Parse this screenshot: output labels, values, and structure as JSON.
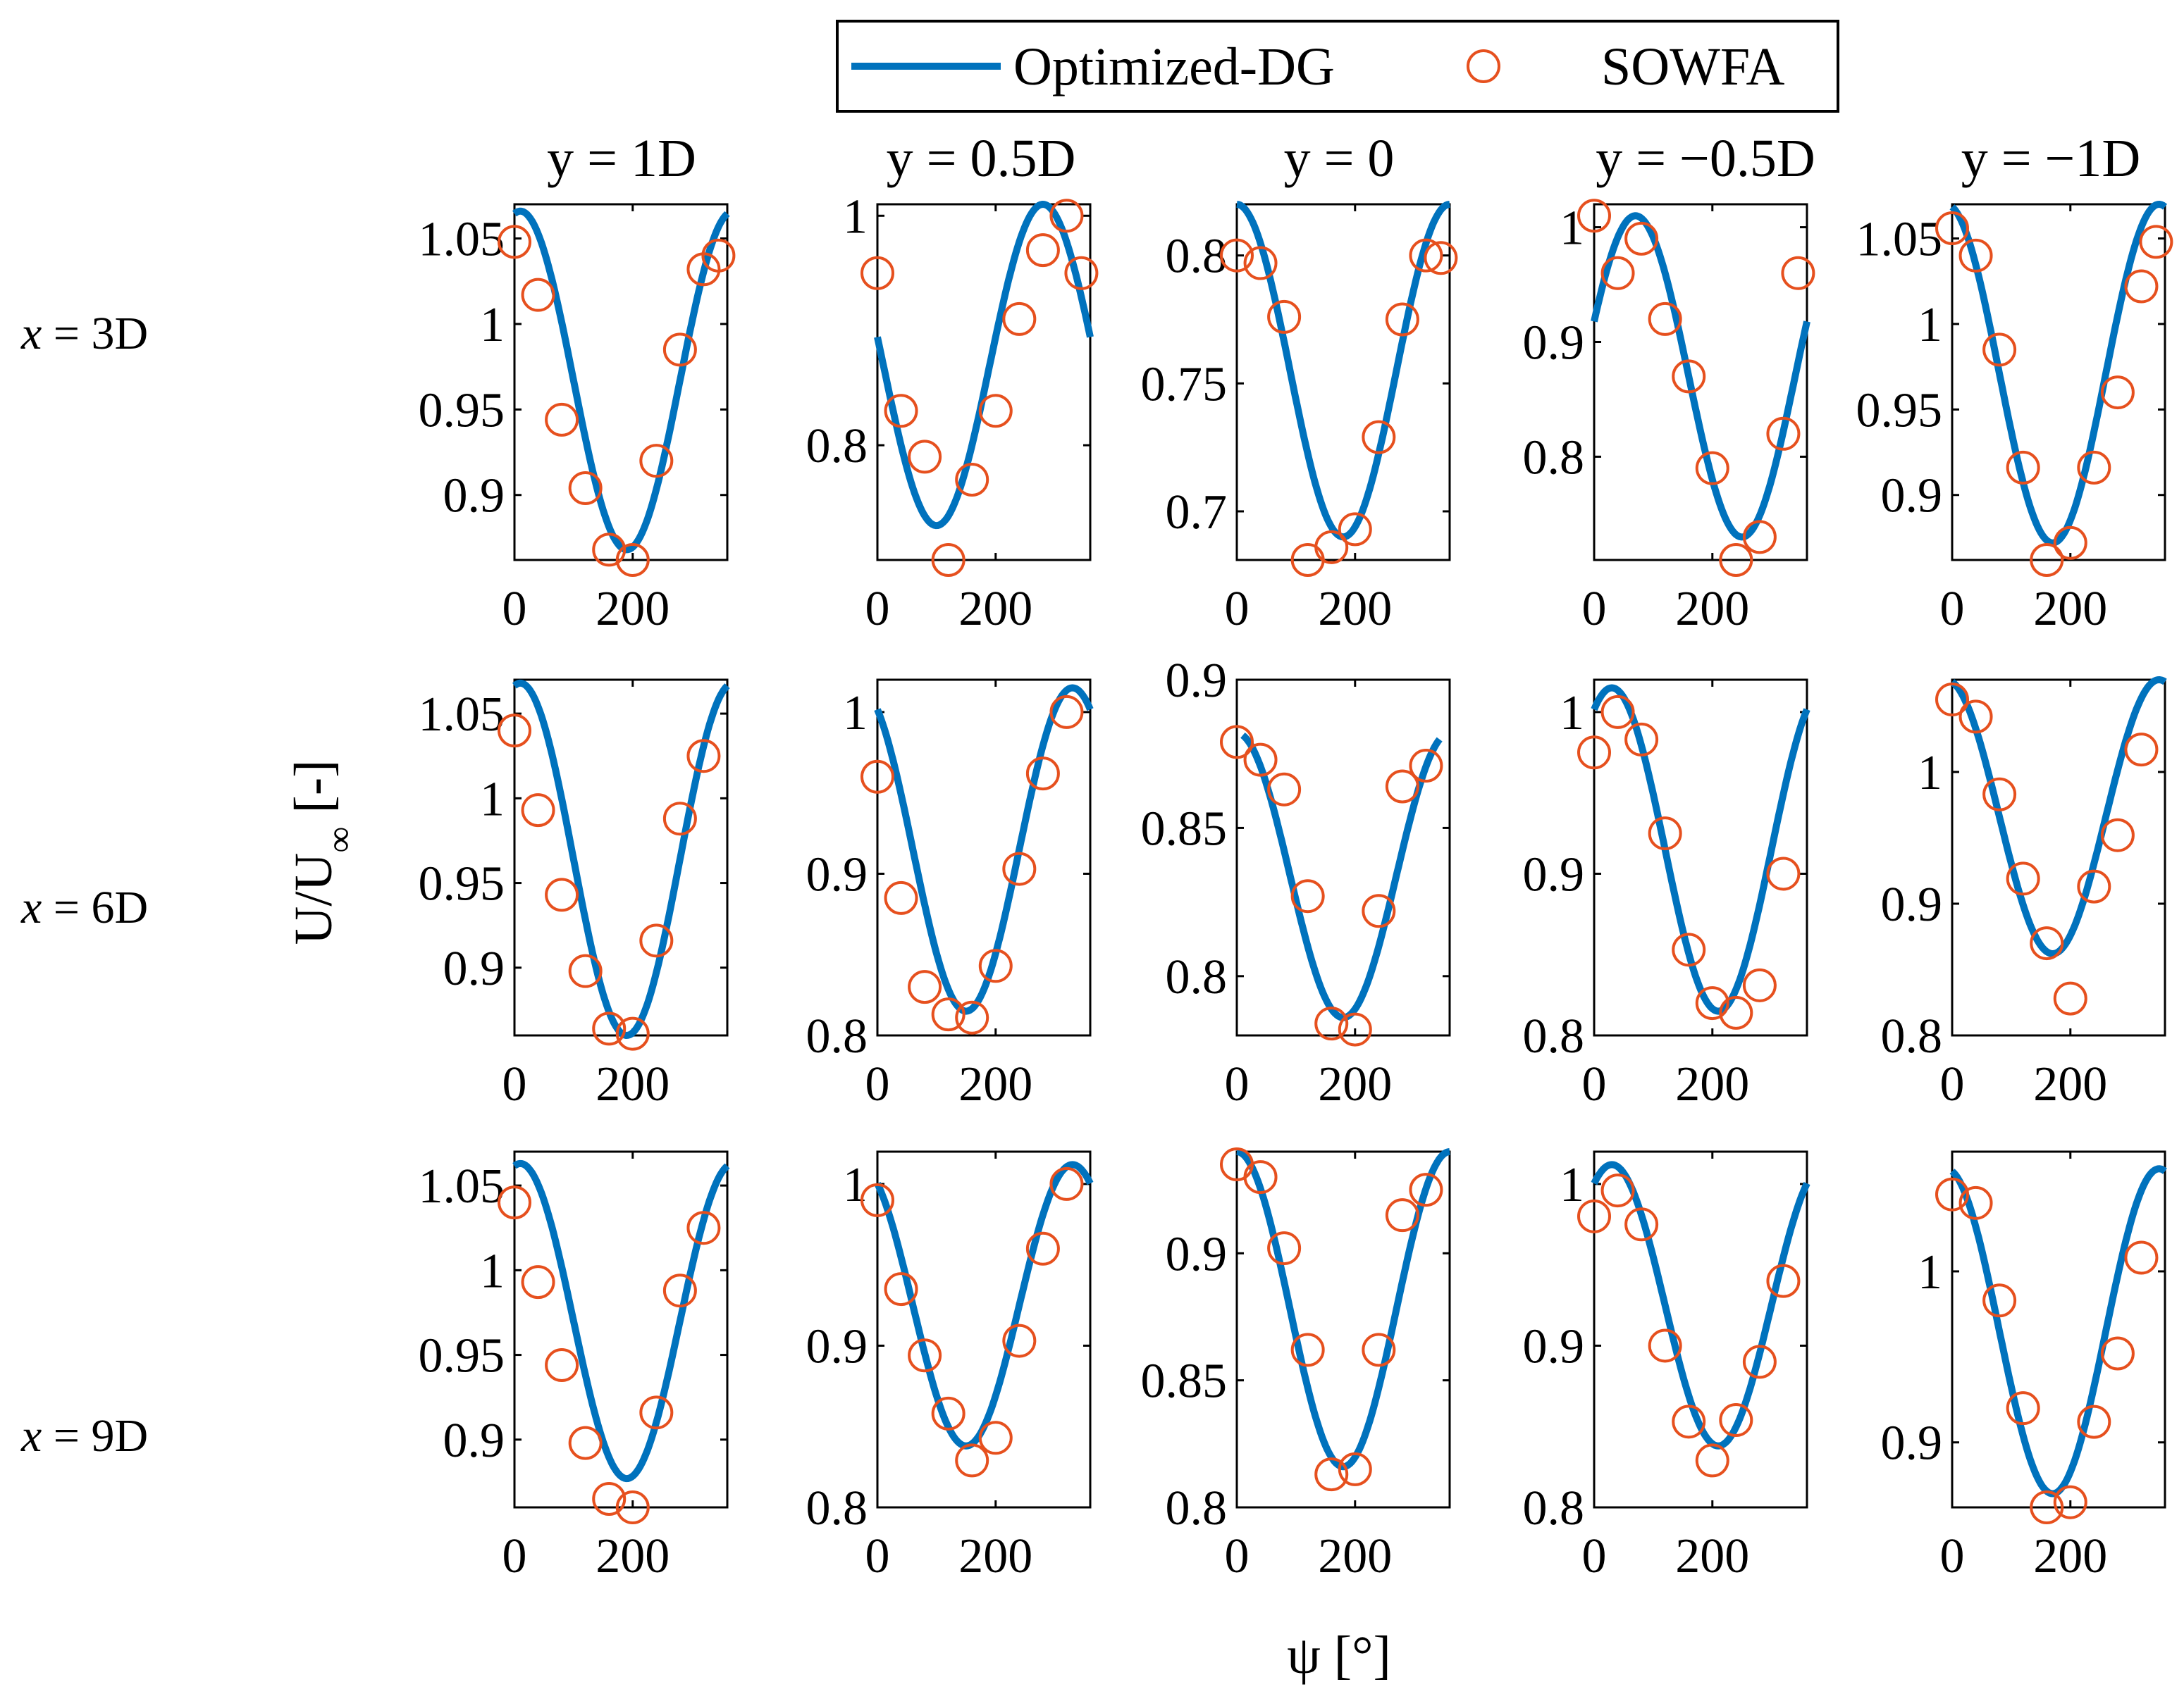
{
  "legend": {
    "line_label": "Optimized-DG",
    "marker_label": "SOWFA"
  },
  "colors": {
    "model": "#0072BD",
    "sowfa": "#E6501E",
    "axes": "#000000"
  },
  "axis_labels": {
    "x": "ψ [°]",
    "y_main": "U/U",
    "y_sub": "∞",
    "y_tail": " [-]"
  },
  "columns": [
    "y = 1D",
    "y = 0.5D",
    "y = 0",
    "y = −0.5D",
    "y = −1D"
  ],
  "rows": [
    {
      "pre": "x",
      "post": " = 3D"
    },
    {
      "pre": "x",
      "post": " = 6D"
    },
    {
      "pre": "x",
      "post": " = 9D"
    }
  ],
  "chart_data": [
    {
      "type": "line",
      "title": "y = 1D / x = 3D",
      "xlim": [
        0,
        360
      ],
      "ylim": [
        0.862,
        1.07
      ],
      "xticks": [
        "0",
        "200"
      ],
      "yticks": [
        [
          "0.9",
          0.9
        ],
        [
          "0.95",
          0.95
        ],
        [
          "1",
          1
        ],
        [
          "1.05",
          1.05
        ]
      ],
      "series": [
        {
          "name": "Optimized-DG",
          "curve": {
            "mean": 0.967,
            "amp": 0.099,
            "phase": 10,
            "x0": 0,
            "x1": 360
          }
        },
        {
          "name": "SOWFA",
          "x": [
            0,
            40,
            80,
            120,
            160,
            200,
            240,
            280,
            320,
            345
          ],
          "y": [
            1.048,
            1.017,
            0.944,
            0.904,
            0.868,
            0.862,
            0.92,
            0.985,
            1.032,
            1.04
          ]
        }
      ]
    },
    {
      "type": "line",
      "title": "y = 0.5D / x = 3D",
      "xlim": [
        0,
        360
      ],
      "ylim": [
        0.7,
        1.01
      ],
      "xticks": [
        "0",
        "200"
      ],
      "yticks": [
        [
          "0.8",
          0.8
        ],
        [
          "1",
          1
        ]
      ],
      "series": [
        {
          "name": "Optimized-DG",
          "curve": {
            "mean": 0.87,
            "amp": 0.14,
            "phase": -80,
            "x0": 0,
            "x1": 360
          }
        },
        {
          "name": "SOWFA",
          "x": [
            0,
            40,
            80,
            120,
            160,
            200,
            240,
            280,
            320,
            345
          ],
          "y": [
            0.95,
            0.83,
            0.79,
            0.7,
            0.77,
            0.83,
            0.91,
            0.97,
            1.0,
            0.95
          ]
        }
      ]
    },
    {
      "type": "line",
      "title": "y = 0 / x = 3D",
      "xlim": [
        0,
        360
      ],
      "ylim": [
        0.681,
        0.82
      ],
      "xticks": [
        "0",
        "200"
      ],
      "yticks": [
        [
          "0.7",
          0.7
        ],
        [
          "0.75",
          0.75
        ],
        [
          "0.8",
          0.8
        ]
      ],
      "series": [
        {
          "name": "Optimized-DG",
          "curve": {
            "mean": 0.755,
            "amp": 0.065,
            "phase": 0,
            "x0": 0,
            "x1": 360
          }
        },
        {
          "name": "SOWFA",
          "x": [
            0,
            40,
            80,
            120,
            160,
            200,
            240,
            280,
            320,
            345
          ],
          "y": [
            0.8,
            0.797,
            0.776,
            0.681,
            0.686,
            0.693,
            0.729,
            0.775,
            0.8,
            0.799
          ]
        }
      ]
    },
    {
      "type": "line",
      "title": "y = −0.5D / x = 3D",
      "xlim": [
        0,
        360
      ],
      "ylim": [
        0.71,
        1.02
      ],
      "xticks": [
        "0",
        "200"
      ],
      "yticks": [
        [
          "0.8",
          0.8
        ],
        [
          "0.9",
          0.9
        ],
        [
          "1",
          1
        ]
      ],
      "series": [
        {
          "name": "Optimized-DG",
          "curve": {
            "mean": 0.87,
            "amp": 0.14,
            "phase": 70,
            "x0": 0,
            "x1": 360
          }
        },
        {
          "name": "SOWFA",
          "x": [
            0,
            40,
            80,
            120,
            160,
            200,
            240,
            280,
            320,
            345
          ],
          "y": [
            1.01,
            0.96,
            0.99,
            0.92,
            0.87,
            0.79,
            0.71,
            0.73,
            0.82,
            0.96
          ]
        }
      ]
    },
    {
      "type": "line",
      "title": "y = −1D / x = 3D",
      "xlim": [
        0,
        360
      ],
      "ylim": [
        0.862,
        1.07
      ],
      "xticks": [
        "0",
        "200"
      ],
      "yticks": [
        [
          "0.9",
          0.9
        ],
        [
          "0.95",
          0.95
        ],
        [
          "1",
          1
        ],
        [
          "1.05",
          1.05
        ]
      ],
      "series": [
        {
          "name": "Optimized-DG",
          "curve": {
            "mean": 0.971,
            "amp": 0.099,
            "phase": -10,
            "x0": 0,
            "x1": 360
          }
        },
        {
          "name": "SOWFA",
          "x": [
            0,
            40,
            80,
            120,
            160,
            200,
            240,
            280,
            320,
            345
          ],
          "y": [
            1.056,
            1.04,
            0.985,
            0.916,
            0.862,
            0.872,
            0.916,
            0.96,
            1.022,
            1.048
          ]
        }
      ]
    },
    {
      "type": "line",
      "title": "y = 1D / x = 6D",
      "xlim": [
        0,
        360
      ],
      "ylim": [
        0.86,
        1.07
      ],
      "xticks": [
        "0",
        "200"
      ],
      "yticks": [
        [
          "0.9",
          0.9
        ],
        [
          "0.95",
          0.95
        ],
        [
          "1",
          1
        ],
        [
          "1.05",
          1.05
        ]
      ],
      "series": [
        {
          "name": "Optimized-DG",
          "curve": {
            "mean": 0.964,
            "amp": 0.104,
            "phase": 10,
            "x0": 0,
            "x1": 360
          }
        },
        {
          "name": "SOWFA",
          "x": [
            0,
            40,
            80,
            120,
            160,
            200,
            240,
            280,
            320
          ],
          "y": [
            1.04,
            0.993,
            0.943,
            0.898,
            0.864,
            0.861,
            0.916,
            0.988,
            1.025
          ]
        }
      ]
    },
    {
      "type": "line",
      "title": "y = 0.5D / x = 6D",
      "xlim": [
        0,
        360
      ],
      "ylim": [
        0.8,
        1.02
      ],
      "xticks": [
        "0",
        "200"
      ],
      "yticks": [
        [
          "0.8",
          0.8
        ],
        [
          "0.9",
          0.9
        ],
        [
          "1",
          1
        ]
      ],
      "series": [
        {
          "name": "Optimized-DG",
          "curve": {
            "mean": 0.915,
            "amp": 0.1,
            "phase": -30,
            "x0": 0,
            "x1": 360
          }
        },
        {
          "name": "SOWFA",
          "x": [
            0,
            40,
            80,
            120,
            160,
            200,
            240,
            280,
            320
          ],
          "y": [
            0.96,
            0.885,
            0.83,
            0.813,
            0.811,
            0.843,
            0.903,
            0.962,
            1.0
          ]
        }
      ]
    },
    {
      "type": "line",
      "title": "y = 0 / x = 6D",
      "xlim": [
        0,
        360
      ],
      "ylim": [
        0.78,
        0.9
      ],
      "xticks": [
        "0",
        "200"
      ],
      "yticks": [
        [
          "0.8",
          0.8
        ],
        [
          "0.85",
          0.85
        ],
        [
          "0.9",
          0.9
        ]
      ],
      "series": [
        {
          "name": "Optimized-DG",
          "curve": {
            "mean": 0.834,
            "amp": 0.048,
            "phase": 0,
            "x0": 10,
            "x1": 345
          }
        },
        {
          "name": "SOWFA",
          "x": [
            0,
            40,
            80,
            120,
            160,
            200,
            240,
            280,
            320
          ],
          "y": [
            0.879,
            0.873,
            0.863,
            0.827,
            0.784,
            0.782,
            0.822,
            0.864,
            0.871
          ]
        }
      ]
    },
    {
      "type": "line",
      "title": "y = −0.5D / x = 6D",
      "xlim": [
        0,
        360
      ],
      "ylim": [
        0.8,
        1.02
      ],
      "xticks": [
        "0",
        "200"
      ],
      "yticks": [
        [
          "0.8",
          0.8
        ],
        [
          "0.9",
          0.9
        ],
        [
          "1",
          1
        ]
      ],
      "series": [
        {
          "name": "Optimized-DG",
          "curve": {
            "mean": 0.915,
            "amp": 0.1,
            "phase": 30,
            "x0": 0,
            "x1": 360
          }
        },
        {
          "name": "SOWFA",
          "x": [
            0,
            40,
            80,
            120,
            160,
            200,
            240,
            280,
            320
          ],
          "y": [
            0.975,
            1.0,
            0.983,
            0.925,
            0.853,
            0.82,
            0.814,
            0.831,
            0.9
          ]
        }
      ]
    },
    {
      "type": "line",
      "title": "y = −1D / x = 6D",
      "xlim": [
        0,
        360
      ],
      "ylim": [
        0.8,
        1.07
      ],
      "xticks": [
        "0",
        "200"
      ],
      "yticks": [
        [
          "0.8",
          0.8
        ],
        [
          "0.9",
          0.9
        ],
        [
          "1",
          1
        ]
      ],
      "series": [
        {
          "name": "Optimized-DG",
          "curve": {
            "mean": 0.966,
            "amp": 0.104,
            "phase": -10,
            "x0": 0,
            "x1": 360
          }
        },
        {
          "name": "SOWFA",
          "x": [
            0,
            40,
            80,
            120,
            160,
            200,
            240,
            280,
            320
          ],
          "y": [
            1.055,
            1.042,
            0.983,
            0.919,
            0.87,
            0.828,
            0.913,
            0.952,
            1.017
          ]
        }
      ]
    },
    {
      "type": "line",
      "title": "y = 1D / x = 9D",
      "xlim": [
        0,
        360
      ],
      "ylim": [
        0.86,
        1.07
      ],
      "xticks": [
        "0",
        "200"
      ],
      "yticks": [
        [
          "0.9",
          0.9
        ],
        [
          "0.95",
          0.95
        ],
        [
          "1",
          1
        ],
        [
          "1.05",
          1.05
        ]
      ],
      "series": [
        {
          "name": "Optimized-DG",
          "curve": {
            "mean": 0.97,
            "amp": 0.093,
            "phase": 10,
            "x0": 0,
            "x1": 360
          }
        },
        {
          "name": "SOWFA",
          "x": [
            0,
            40,
            80,
            120,
            160,
            200,
            240,
            280,
            320
          ],
          "y": [
            1.04,
            0.993,
            0.944,
            0.898,
            0.865,
            0.86,
            0.916,
            0.988,
            1.025
          ]
        }
      ]
    },
    {
      "type": "line",
      "title": "y = 0.5D / x = 9D",
      "xlim": [
        0,
        360
      ],
      "ylim": [
        0.8,
        1.02
      ],
      "xticks": [
        "0",
        "200"
      ],
      "yticks": [
        [
          "0.8",
          0.8
        ],
        [
          "0.9",
          0.9
        ],
        [
          "1",
          1
        ]
      ],
      "series": [
        {
          "name": "Optimized-DG",
          "curve": {
            "mean": 0.925,
            "amp": 0.087,
            "phase": -30,
            "x0": 0,
            "x1": 360
          }
        },
        {
          "name": "SOWFA",
          "x": [
            0,
            40,
            80,
            120,
            160,
            200,
            240,
            280,
            320
          ],
          "y": [
            0.99,
            0.935,
            0.894,
            0.858,
            0.829,
            0.843,
            0.903,
            0.96,
            1.0
          ]
        }
      ]
    },
    {
      "type": "line",
      "title": "y = 0 / x = 9D",
      "xlim": [
        0,
        360
      ],
      "ylim": [
        0.8,
        0.94
      ],
      "xticks": [
        "0",
        "200"
      ],
      "yticks": [
        [
          "0.8",
          0.8
        ],
        [
          "0.85",
          0.85
        ],
        [
          "0.9",
          0.9
        ]
      ],
      "series": [
        {
          "name": "Optimized-DG",
          "curve": {
            "mean": 0.878,
            "amp": 0.062,
            "phase": 0,
            "x0": 0,
            "x1": 360
          }
        },
        {
          "name": "SOWFA",
          "x": [
            0,
            40,
            80,
            120,
            160,
            200,
            240,
            280,
            320
          ],
          "y": [
            0.935,
            0.93,
            0.902,
            0.862,
            0.813,
            0.815,
            0.862,
            0.915,
            0.925
          ]
        }
      ]
    },
    {
      "type": "line",
      "title": "y = −0.5D / x = 9D",
      "xlim": [
        0,
        360
      ],
      "ylim": [
        0.8,
        1.02
      ],
      "xticks": [
        "0",
        "200"
      ],
      "yticks": [
        [
          "0.8",
          0.8
        ],
        [
          "0.9",
          0.9
        ],
        [
          "1",
          1
        ]
      ],
      "series": [
        {
          "name": "Optimized-DG",
          "curve": {
            "mean": 0.925,
            "amp": 0.087,
            "phase": 30,
            "x0": 0,
            "x1": 360
          }
        },
        {
          "name": "SOWFA",
          "x": [
            0,
            40,
            80,
            120,
            160,
            200,
            240,
            280,
            320
          ],
          "y": [
            0.98,
            0.996,
            0.975,
            0.9,
            0.853,
            0.829,
            0.854,
            0.89,
            0.94
          ]
        }
      ]
    },
    {
      "type": "line",
      "title": "y = −1D / x = 9D",
      "xlim": [
        0,
        360
      ],
      "ylim": [
        0.862,
        1.07
      ],
      "xticks": [
        "0",
        "200"
      ],
      "yticks": [
        [
          "0.9",
          0.9
        ],
        [
          "1",
          1
        ]
      ],
      "series": [
        {
          "name": "Optimized-DG",
          "curve": {
            "mean": 0.965,
            "amp": 0.095,
            "phase": -10,
            "x0": 0,
            "x1": 360
          }
        },
        {
          "name": "SOWFA",
          "x": [
            0,
            40,
            80,
            120,
            160,
            200,
            240,
            280,
            320
          ],
          "y": [
            1.045,
            1.04,
            0.983,
            0.92,
            0.862,
            0.865,
            0.912,
            0.952,
            1.008
          ]
        }
      ]
    }
  ]
}
